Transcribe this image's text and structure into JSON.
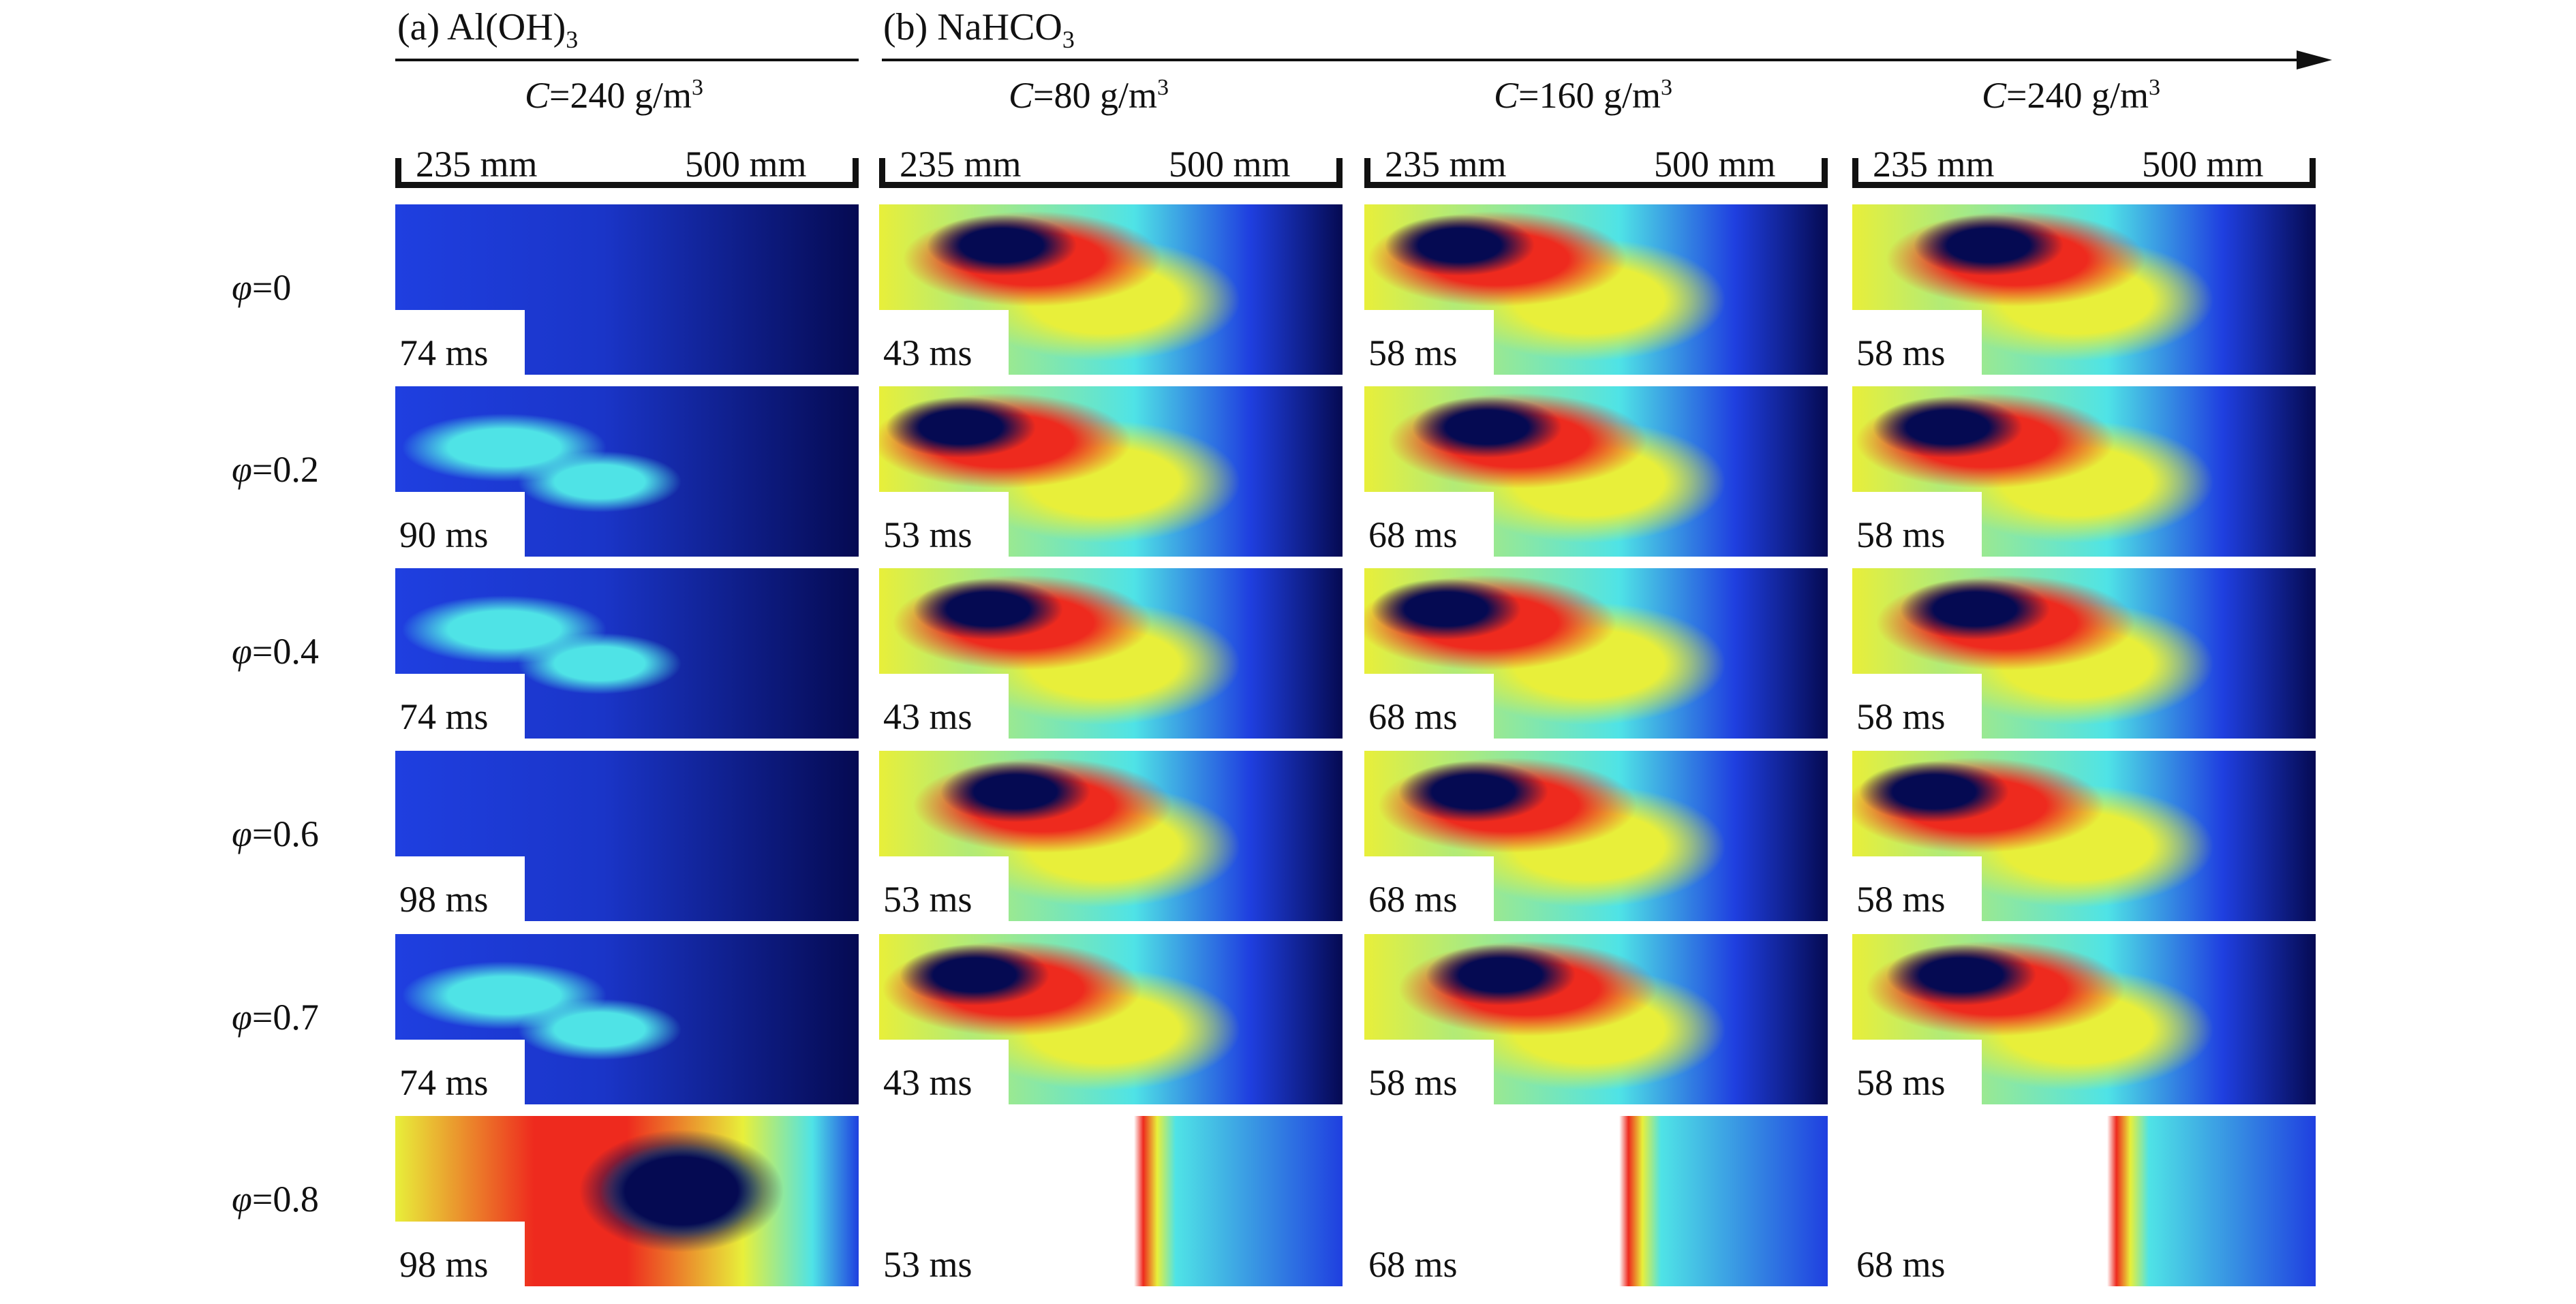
{
  "groups": {
    "a_label": "(a) Al(OH)",
    "a_sub": "3",
    "b_label": "(b) NaHCO",
    "b_sub": "3"
  },
  "columns": [
    {
      "c_sym": "C",
      "c_val": "=240 g/m",
      "c_exp": "3",
      "scale_left": "235 mm",
      "scale_right": "500 mm"
    },
    {
      "c_sym": "C",
      "c_val": "=80 g/m",
      "c_exp": "3",
      "scale_left": "235 mm",
      "scale_right": "500 mm"
    },
    {
      "c_sym": "C",
      "c_val": "=160 g/m",
      "c_exp": "3",
      "scale_left": "235 mm",
      "scale_right": "500 mm"
    },
    {
      "c_sym": "C",
      "c_val": "=240 g/m",
      "c_exp": "3",
      "scale_left": "235 mm",
      "scale_right": "500 mm"
    }
  ],
  "rows": [
    {
      "phi_sym": "φ",
      "phi_val": "=0",
      "times": [
        "74 ms",
        "43 ms",
        "58 ms",
        "58 ms"
      ]
    },
    {
      "phi_sym": "φ",
      "phi_val": "=0.2",
      "times": [
        "90 ms",
        "53 ms",
        "68 ms",
        "58 ms"
      ]
    },
    {
      "phi_sym": "φ",
      "phi_val": "=0.4",
      "times": [
        "74 ms",
        "43 ms",
        "68 ms",
        "58 ms"
      ]
    },
    {
      "phi_sym": "φ",
      "phi_val": "=0.6",
      "times": [
        "98 ms",
        "53 ms",
        "68 ms",
        "58 ms"
      ]
    },
    {
      "phi_sym": "φ",
      "phi_val": "=0.7",
      "times": [
        "74 ms",
        "43 ms",
        "58 ms",
        "58 ms"
      ]
    },
    {
      "phi_sym": "φ",
      "phi_val": "=0.8",
      "times": [
        "98 ms",
        "53 ms",
        "68 ms",
        "68 ms"
      ]
    }
  ],
  "colors": {
    "dark_navy": "#050a52",
    "blue": "#1f3fe0",
    "cyan": "#4fe3e6",
    "yellow": "#e8ef3a",
    "red": "#ee2a1e",
    "white": "#ffffff"
  }
}
